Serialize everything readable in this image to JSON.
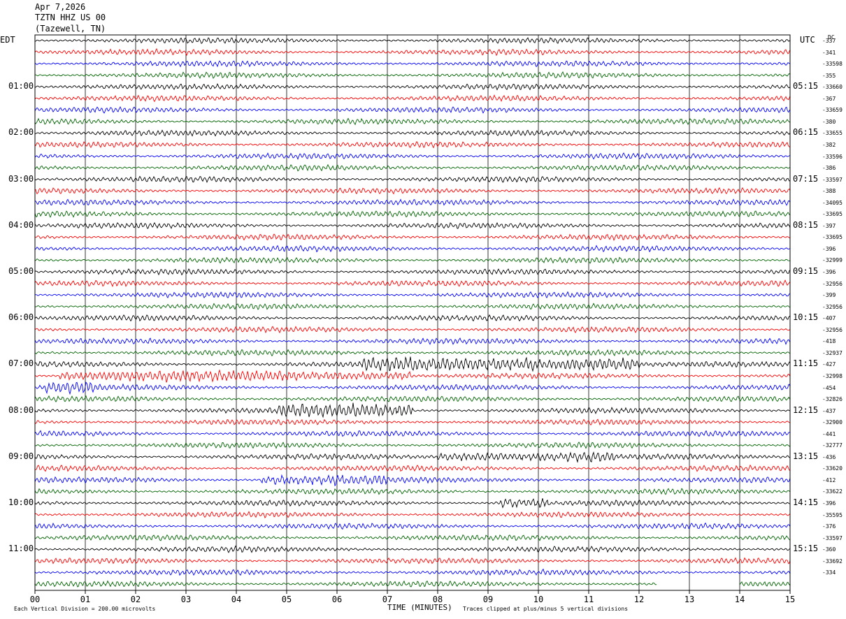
{
  "header": {
    "date": "Apr 7,2026",
    "station": "TZTN HHZ US 00",
    "location": "(Tazewell, TN)"
  },
  "left_timezone": "EDT",
  "right_timezone": "UTC",
  "dc_label": "DC",
  "footer": {
    "scale": "Each Vertical Division =  200.00 microvolts",
    "xlabel": "TIME (MINUTES)",
    "clip_note": "Traces clipped at plus/minus 5 vertical divisions"
  },
  "colors": {
    "trace_cycle": [
      "#000000",
      "#ff0000",
      "#0000ff",
      "#006400"
    ],
    "gridline": "#000000",
    "background": "#ffffff"
  },
  "chart_data": {
    "type": "helicorder",
    "x": {
      "label": "TIME (MINUTES)",
      "range": [
        0,
        15
      ],
      "ticks": [
        "00",
        "01",
        "02",
        "03",
        "04",
        "05",
        "06",
        "07",
        "08",
        "09",
        "10",
        "11",
        "12",
        "13",
        "14",
        "15"
      ]
    },
    "grid": "vertical lines at each minute",
    "minutes_per_line": 15,
    "lines_count": 48,
    "left_hour_labels": [
      "01:00",
      "02:00",
      "03:00",
      "04:00",
      "05:00",
      "06:00",
      "07:00",
      "08:00",
      "09:00",
      "10:00",
      "11:00"
    ],
    "right_hour_labels": [
      "05:15",
      "06:15",
      "07:15",
      "08:15",
      "09:15",
      "10:15",
      "11:15",
      "12:15",
      "13:15",
      "14:15",
      "15:15"
    ],
    "dc_offsets": [
      "-337",
      "-341",
      "-33598",
      "-355",
      "-33660",
      "-367",
      "-33659",
      "-380",
      "-33655",
      "-382",
      "-33596",
      "-386",
      "-33597",
      "-388",
      "-34095",
      "-33695",
      "-397",
      "-33695",
      "-396",
      "-32999",
      "-396",
      "-32956",
      "-399",
      "-32956",
      "-407",
      "-32956",
      "-418",
      "-32937",
      "-427",
      "-32998",
      "-454",
      "-32826",
      "-437",
      "-32900",
      "-441",
      "-32777",
      "-436",
      "-33620",
      "-412",
      "-33622",
      "-396",
      "-35595",
      "-376",
      "-33597",
      "-360",
      "-33692",
      "-334"
    ],
    "series_color_cycle": [
      "black",
      "red",
      "blue",
      "green"
    ],
    "events": [
      {
        "line": 28,
        "from_min": 6.5,
        "to_min": 12.0,
        "level": "high"
      },
      {
        "line": 29,
        "from_min": 0.5,
        "to_min": 7.5,
        "level": "medium"
      },
      {
        "line": 30,
        "from_min": 0.2,
        "to_min": 1.2,
        "level": "medium"
      },
      {
        "line": 32,
        "from_min": 4.8,
        "to_min": 7.5,
        "level": "high"
      },
      {
        "line": 36,
        "from_min": 8.0,
        "to_min": 11.5,
        "level": "medium"
      },
      {
        "line": 38,
        "from_min": 4.5,
        "to_min": 7.0,
        "level": "medium"
      },
      {
        "line": 40,
        "from_min": 9.2,
        "to_min": 10.2,
        "level": "medium"
      }
    ],
    "data_end": {
      "line": 47,
      "minute": 12.35
    }
  }
}
